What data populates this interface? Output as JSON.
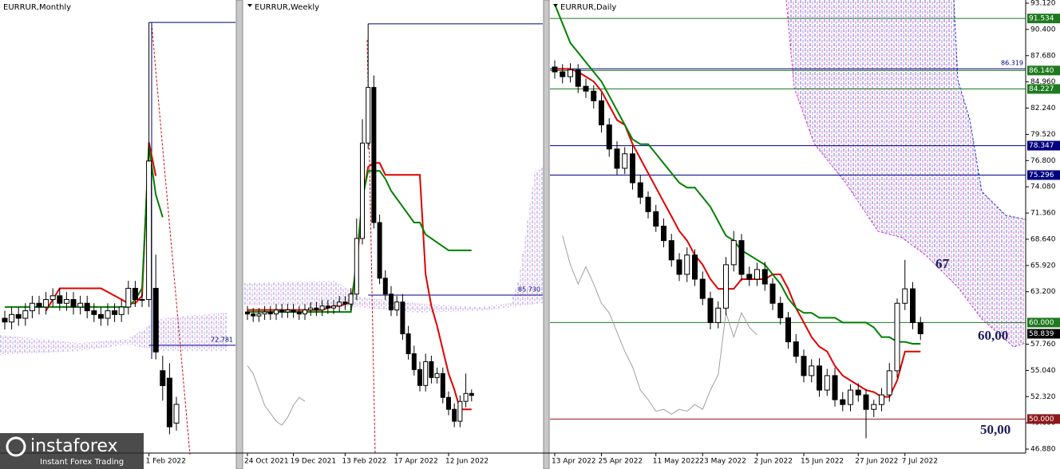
{
  "chart_data": [
    {
      "type": "candlestick",
      "title": "EURRUR,Monthly",
      "ylim": [
        44,
        165
      ],
      "categories": [
        null,
        null,
        null,
        null,
        null,
        null,
        null,
        null,
        null,
        null,
        null,
        null,
        null,
        null,
        null,
        null,
        null,
        null,
        null,
        null,
        null,
        "1 Feb 2022",
        null,
        null,
        null,
        null
      ],
      "open": [
        80,
        79,
        81,
        80,
        82,
        84,
        83,
        85,
        86,
        84,
        85,
        83,
        84,
        82,
        81,
        80,
        82,
        81,
        83,
        88,
        85,
        85,
        88,
        66,
        64,
        52
      ],
      "high": [
        82,
        83,
        83,
        84,
        86,
        86,
        87,
        88,
        88,
        87,
        87,
        86,
        86,
        84,
        83,
        84,
        84,
        85,
        90,
        90,
        87,
        159,
        97,
        70,
        68,
        59
      ],
      "low": [
        77,
        77,
        78,
        78,
        80,
        81,
        81,
        83,
        82,
        82,
        81,
        81,
        80,
        79,
        78,
        78,
        79,
        79,
        81,
        83,
        83,
        83,
        69,
        58,
        49,
        50
      ],
      "close": [
        79,
        81,
        80,
        82,
        84,
        83,
        85,
        86,
        84,
        85,
        83,
        84,
        82,
        81,
        80,
        82,
        81,
        83,
        88,
        85,
        85,
        122,
        71,
        62,
        51,
        57
      ],
      "lines": [
        {
          "color": "#e00000",
          "values": [
            null,
            null,
            null,
            null,
            null,
            null,
            82,
            85,
            88,
            88,
            88,
            88,
            88,
            88,
            88,
            87,
            86,
            85,
            84,
            84,
            86,
            127,
            118,
            null,
            null,
            null
          ]
        },
        {
          "color": "#008000",
          "values": [
            83,
            83,
            83,
            83,
            83,
            83,
            83,
            83,
            83,
            83,
            83,
            83,
            83,
            83,
            83,
            83,
            83,
            83,
            83,
            85,
            88,
            126,
            113,
            107,
            null,
            null
          ]
        }
      ],
      "levels": [
        {
          "value": 159,
          "color": "#000080",
          "span": "from-peak"
        },
        {
          "value": 72.781,
          "color": "#000080",
          "span": "from-peak",
          "label_position": "inside"
        }
      ]
    },
    {
      "type": "candlestick",
      "title": "EURRUR,Weekly",
      "ylim": [
        46,
        160
      ],
      "categories": [
        "24 Oct 2021",
        null,
        null,
        null,
        null,
        null,
        null,
        null,
        "19 Dec 2021",
        null,
        null,
        null,
        null,
        null,
        null,
        null,
        null,
        "13 Feb 2022",
        null,
        null,
        null,
        null,
        null,
        null,
        null,
        null,
        "17 Apr 2022",
        null,
        null,
        null,
        null,
        null,
        null,
        null,
        null,
        "12 Jun 2022",
        null,
        null,
        null,
        null
      ],
      "open": [
        81.5,
        81,
        80.5,
        81,
        81.5,
        81,
        82,
        81.5,
        82,
        81.5,
        81,
        82,
        82.5,
        82,
        83,
        82.5,
        83,
        84,
        83.5,
        86,
        100,
        124,
        138,
        104,
        90,
        86,
        82,
        84,
        76,
        71,
        67,
        63,
        69,
        65,
        66,
        60,
        57,
        54,
        59,
        61
      ],
      "high": [
        83,
        82.5,
        82.5,
        83,
        83,
        83.5,
        83.5,
        83.5,
        83.5,
        83,
        83.5,
        84,
        84,
        84.5,
        84.5,
        84.5,
        85.5,
        85.5,
        87.5,
        105,
        130,
        154,
        141,
        106,
        92,
        88,
        85.5,
        86,
        78,
        73,
        69,
        71,
        70.5,
        67.5,
        67.5,
        61.5,
        58.5,
        60.5,
        66,
        62
      ],
      "low": [
        79.5,
        79,
        79,
        79.5,
        79.5,
        79.5,
        80,
        80,
        80,
        79.5,
        79.5,
        80.5,
        80.5,
        80.5,
        81,
        81,
        81.5,
        82,
        82,
        84.5,
        98.5,
        122.5,
        102.5,
        88.5,
        84.5,
        80.5,
        80.5,
        74.5,
        69.5,
        65.5,
        61.5,
        61.5,
        63.5,
        63.5,
        58.5,
        55.5,
        52.5,
        52.5,
        57.5,
        59
      ],
      "close": [
        81,
        80.5,
        81,
        81.5,
        81,
        82,
        81.5,
        82,
        81.5,
        81,
        82,
        82.5,
        82,
        83,
        82.5,
        83,
        84,
        83.5,
        86,
        100,
        124,
        138,
        104,
        90,
        86,
        82,
        84,
        76,
        71,
        67,
        63,
        69,
        65,
        66,
        60,
        57,
        54,
        59,
        61,
        60.5
      ],
      "lines": [
        {
          "color": "#e00000",
          "values": [
            82,
            82,
            82,
            82,
            82,
            82,
            82,
            82,
            82,
            82,
            82,
            82,
            82,
            82,
            82.5,
            83,
            83,
            83.5,
            84,
            93,
            110,
            118,
            119,
            119,
            116,
            116,
            116,
            116,
            116,
            116,
            116,
            91,
            83,
            78,
            72,
            66,
            62,
            57,
            57,
            57
          ]
        },
        {
          "color": "#008000",
          "values": [
            81.5,
            81.5,
            81.5,
            81.5,
            81.5,
            81.5,
            81.5,
            81.5,
            81.5,
            81.5,
            81.5,
            81.5,
            81.5,
            81.5,
            81.5,
            81.5,
            81.5,
            81.5,
            81.5,
            95,
            110,
            117,
            117,
            117,
            115,
            112,
            110,
            108,
            106,
            104,
            104,
            101,
            100,
            99,
            98,
            97,
            97,
            97,
            97,
            97
          ]
        },
        {
          "color": "#a0a0a0",
          "values": [
            68,
            66,
            62,
            58,
            56,
            54,
            53,
            55,
            58,
            60,
            59,
            null,
            null,
            null,
            null,
            null,
            null,
            null,
            null,
            null,
            null,
            null,
            null,
            null,
            null,
            null,
            null,
            null,
            null,
            null,
            null,
            null,
            null,
            null,
            null,
            null,
            null,
            null,
            null,
            null
          ]
        }
      ],
      "levels": [
        {
          "value": 154,
          "color": "#000080",
          "span": "from-peak"
        },
        {
          "value": {
            "value": 85.73,
            "label": "85.730"
          },
          "color": "#000080",
          "span": "from-peak",
          "label_position": "inside"
        }
      ]
    },
    {
      "type": "candlestick",
      "title": "EURRUR,Daily",
      "ylim": [
        46.47,
        93.45
      ],
      "categories": [
        "13 Apr 2022",
        null,
        null,
        null,
        null,
        null,
        "25 Apr 2022",
        null,
        null,
        null,
        null,
        null,
        null,
        "11 May 2022",
        null,
        null,
        null,
        null,
        null,
        "23 May 2022",
        null,
        null,
        null,
        null,
        null,
        null,
        "2 Jun 2022",
        null,
        null,
        null,
        null,
        null,
        "15 Jun 2022",
        null,
        null,
        null,
        null,
        null,
        null,
        "27 Jun 2022",
        null,
        null,
        null,
        null,
        null,
        "7 Jul 2022",
        null,
        null
      ],
      "open": [
        86.5,
        86.0,
        85.5,
        86.2,
        84.5,
        84.0,
        83.0,
        80.5,
        78.0,
        76.0,
        77.5,
        74.5,
        73.0,
        71.5,
        70.0,
        68.5,
        66.5,
        65.0,
        67.0,
        64.5,
        62.5,
        60.0,
        61.5,
        66.0,
        68.5,
        65.0,
        64.5,
        65.5,
        64.0,
        62.0,
        60.5,
        58.0,
        56.5,
        54.5,
        55.5,
        53.0,
        54.5,
        52.0,
        51.5,
        53.0,
        52.5,
        51.0,
        51.5,
        52.5,
        55.0,
        62.0,
        63.5,
        60.0
      ],
      "high": [
        87.2,
        86.8,
        86.9,
        86.8,
        85.3,
        84.6,
        83.8,
        81.2,
        78.8,
        78.2,
        78.3,
        75.3,
        73.6,
        72.2,
        70.8,
        69.2,
        67.2,
        67.8,
        67.6,
        65.3,
        63.2,
        62.2,
        66.8,
        69.5,
        69.2,
        65.8,
        66.2,
        66.3,
        64.6,
        62.7,
        61.1,
        58.8,
        57.2,
        56.2,
        56.3,
        55.2,
        55.3,
        52.8,
        53.6,
        53.7,
        53.1,
        52.0,
        53.2,
        55.8,
        62.5,
        66.5,
        64.2,
        60.6
      ],
      "low": [
        85.3,
        84.8,
        84.9,
        83.8,
        83.3,
        82.2,
        79.7,
        77.2,
        75.3,
        75.4,
        73.8,
        72.3,
        70.8,
        69.4,
        67.8,
        65.8,
        64.3,
        64.2,
        63.8,
        61.8,
        59.3,
        59.4,
        60.8,
        65.3,
        64.3,
        63.8,
        63.8,
        63.3,
        61.3,
        59.8,
        57.3,
        55.8,
        53.8,
        53.8,
        52.3,
        52.4,
        51.3,
        50.8,
        50.8,
        51.8,
        48.0,
        50.2,
        50.8,
        51.8,
        54.3,
        61.3,
        59.3,
        58.2
      ],
      "close": [
        86.0,
        85.5,
        86.2,
        84.5,
        84.0,
        83.0,
        80.5,
        78.0,
        76.0,
        77.5,
        74.5,
        73.0,
        71.5,
        70.0,
        68.5,
        66.5,
        65.0,
        67.0,
        64.5,
        62.5,
        60.0,
        61.5,
        66.0,
        68.5,
        65.0,
        64.5,
        65.5,
        64.0,
        62.0,
        60.5,
        58.0,
        56.5,
        54.5,
        55.5,
        53.0,
        54.5,
        52.0,
        51.5,
        53.0,
        52.5,
        51.0,
        51.5,
        52.5,
        55.0,
        62.0,
        63.5,
        60.0,
        58.839
      ],
      "lines": [
        {
          "color": "#e00000",
          "values": [
            86.3,
            86.3,
            86.3,
            86.0,
            85.5,
            85.0,
            84.0,
            82.5,
            81.0,
            80.5,
            78.5,
            77.0,
            75.5,
            74.0,
            72.5,
            71.0,
            69.5,
            68.5,
            67.0,
            66.0,
            64.5,
            63.5,
            63.5,
            63.5,
            64.5,
            64.5,
            64.5,
            64.5,
            65.0,
            65.0,
            63.5,
            61.5,
            60.0,
            58.5,
            57.5,
            57.0,
            55.5,
            54.5,
            54.0,
            53.5,
            53.0,
            52.8,
            52.3,
            52.3,
            54.0,
            57.0,
            57.0,
            57.0
          ]
        },
        {
          "color": "#008000",
          "values": [
            93.0,
            91.0,
            89.0,
            88.0,
            87.0,
            86.0,
            85.0,
            83.5,
            82.0,
            80.5,
            79.0,
            78.5,
            78.5,
            77.5,
            76.5,
            75.5,
            74.5,
            74.0,
            74.0,
            73.0,
            72.0,
            70.5,
            69.0,
            68.5,
            67.5,
            67.0,
            66.5,
            66.0,
            65.0,
            64.0,
            62.5,
            61.5,
            61.0,
            61.0,
            60.5,
            60.5,
            60.5,
            60.0,
            60.0,
            60.0,
            60.0,
            59.5,
            58.5,
            58.5,
            58.0,
            58.0,
            57.8,
            57.8
          ]
        },
        {
          "color": "#a0a0a0",
          "values": [
            null,
            69,
            66,
            64,
            65.8,
            64,
            62,
            61,
            59,
            57,
            55.4,
            53,
            52,
            50.8,
            51,
            50.5,
            51,
            50.8,
            51.5,
            51,
            53,
            54.6,
            61,
            58.5,
            61,
            59.5,
            58.7,
            null,
            null,
            null,
            null,
            null,
            null,
            null,
            null,
            null,
            null,
            null,
            null,
            null,
            null,
            null,
            null,
            null,
            null,
            null,
            null,
            null
          ]
        }
      ],
      "yticks": [
        {
          "value": 93.12,
          "label": "93.120"
        },
        {
          "value": 90.4,
          "label": "90.400"
        },
        {
          "value": 87.68,
          "label": "87.680"
        },
        {
          "value": 84.96,
          "label": "84.960"
        },
        {
          "value": 82.24,
          "label": "82.240"
        },
        {
          "value": 79.52,
          "label": "79.520"
        },
        {
          "value": 76.8,
          "label": "76.800"
        },
        {
          "value": 74.08,
          "label": "74.080"
        },
        {
          "value": 71.36,
          "label": "71.360"
        },
        {
          "value": 68.64,
          "label": "68.640"
        },
        {
          "value": 65.92,
          "label": "65.920"
        },
        {
          "value": 63.2,
          "label": "63.200"
        },
        {
          "value": 57.76,
          "label": "57.760"
        },
        {
          "value": 55.04,
          "label": "55.040"
        },
        {
          "value": 52.32,
          "label": "52.320"
        },
        {
          "value": 49.6,
          "label": "49.600"
        },
        {
          "value": 46.88,
          "label": "46.880"
        }
      ],
      "levels": [
        {
          "value": 91.534,
          "color": "#1f7a1f",
          "span": "full",
          "label_position": "axis"
        },
        {
          "value": 86.319,
          "color": "#000080",
          "span": "full",
          "label_position": "inside"
        },
        {
          "value": {
            "value": 86.14,
            "label": "86.140"
          },
          "color": "#1f7a1f",
          "span": "full",
          "label_position": "axis"
        },
        {
          "value": 84.227,
          "color": "#1f7a1f",
          "span": "full",
          "label_position": "axis"
        },
        {
          "value": 78.347,
          "color": "#000080",
          "span": "full",
          "label_position": "axis"
        },
        {
          "value": 75.296,
          "color": "#000080",
          "span": "full",
          "label_position": "axis"
        },
        {
          "value": {
            "value": 60,
            "label": "60.000"
          },
          "color": "#1f7a1f",
          "span": "full",
          "label_position": "axis"
        },
        {
          "value": 58.839,
          "color": "#000000",
          "span": "none",
          "label_position": "axis"
        },
        {
          "value": {
            "value": 50,
            "label": "50.000"
          },
          "color": "#8b1a1a",
          "span": "full",
          "label_position": "axis"
        }
      ],
      "annotations": [
        "67",
        "60,00",
        "50,00"
      ]
    }
  ],
  "watermark": {
    "brand": "instaforex",
    "tagline": "Instant Forex Trading"
  }
}
